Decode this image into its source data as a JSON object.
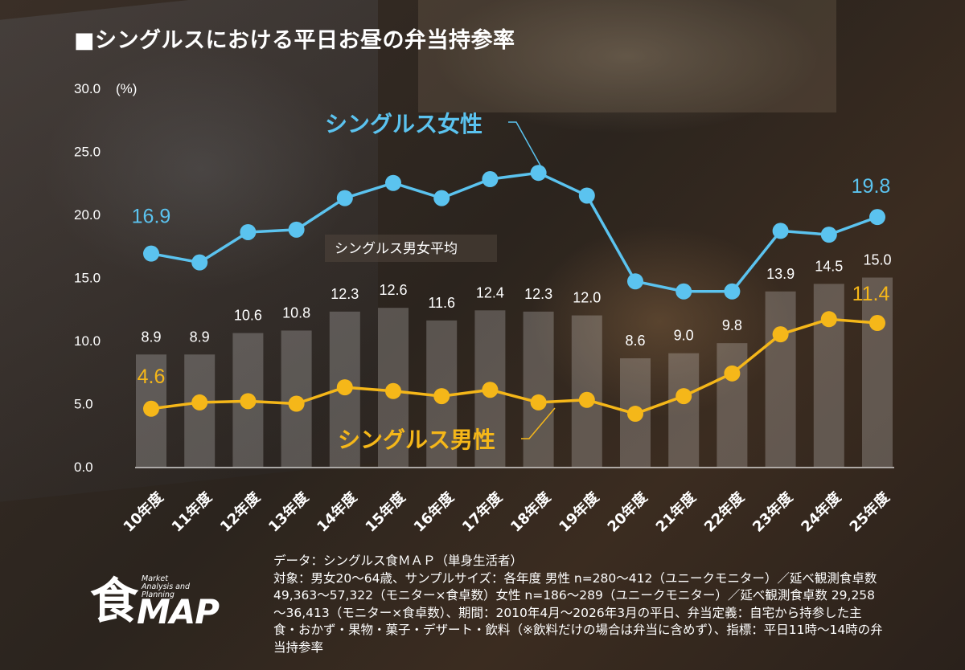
{
  "title": "■シングルスにおける平日お昼の弁当持参率",
  "chart_data": {
    "type": "bar+line",
    "categories": [
      "10年度",
      "11年度",
      "12年度",
      "13年度",
      "14年度",
      "15年度",
      "16年度",
      "17年度",
      "18年度",
      "19年度",
      "20年度",
      "21年度",
      "22年度",
      "23年度",
      "24年度",
      "25年度"
    ],
    "ylim": [
      0,
      30
    ],
    "yticks": [
      "0.0",
      "5.0",
      "10.0",
      "15.0",
      "20.0",
      "25.0",
      "30.0"
    ],
    "yunit": "(%)",
    "bar_series": {
      "name": "シングルス男女平均",
      "values": [
        8.9,
        8.9,
        10.6,
        10.8,
        12.3,
        12.6,
        11.6,
        12.4,
        12.3,
        12.0,
        8.6,
        9.0,
        9.8,
        13.9,
        14.5,
        15.0
      ],
      "labels": [
        "8.9",
        "8.9",
        "10.6",
        "10.8",
        "12.3",
        "12.6",
        "11.6",
        "12.4",
        "12.3",
        "12.0",
        "8.6",
        "9.0",
        "9.8",
        "13.9",
        "14.5",
        "15.0"
      ]
    },
    "line_series": [
      {
        "name": "シングルス女性",
        "color": "#5bc3ef",
        "values": [
          16.9,
          16.2,
          18.6,
          18.8,
          21.3,
          22.5,
          21.3,
          22.8,
          23.3,
          21.5,
          14.7,
          13.9,
          13.9,
          18.7,
          18.4,
          19.8
        ],
        "first_label": "16.9",
        "last_label": "19.8"
      },
      {
        "name": "シングルス男性",
        "color": "#f5b719",
        "values": [
          4.6,
          5.1,
          5.2,
          5.0,
          6.3,
          6.0,
          5.6,
          6.1,
          5.1,
          5.3,
          4.2,
          5.6,
          7.4,
          10.5,
          11.7,
          11.4
        ],
        "first_label": "4.6",
        "last_label": "11.4"
      }
    ]
  },
  "notes": [
    "データ：シングルス食ＭＡＰ（単身生活者）",
    "対象：男女20～64歳、サンプルサイズ：各年度 男性 n=280～412（ユニークモニター）／延べ観測食卓数 49,363～57,322（モニター×食卓数）女性 n=186～289（ユニークモニター）／延べ観測食卓数 29,258～36,413（モニター×食卓数）、期間：2010年4月～2026年3月の平日、弁当定義：自宅から持参した主食・おかず・果物・菓子・デザート・飲料（※飲料だけの場合は弁当に含めず）、指標：平日11時～14時の弁当持参率"
  ],
  "logo": {
    "kanji": "食",
    "map": "MAP",
    "sub": [
      "Market",
      "Analysis and",
      "Planning"
    ]
  }
}
